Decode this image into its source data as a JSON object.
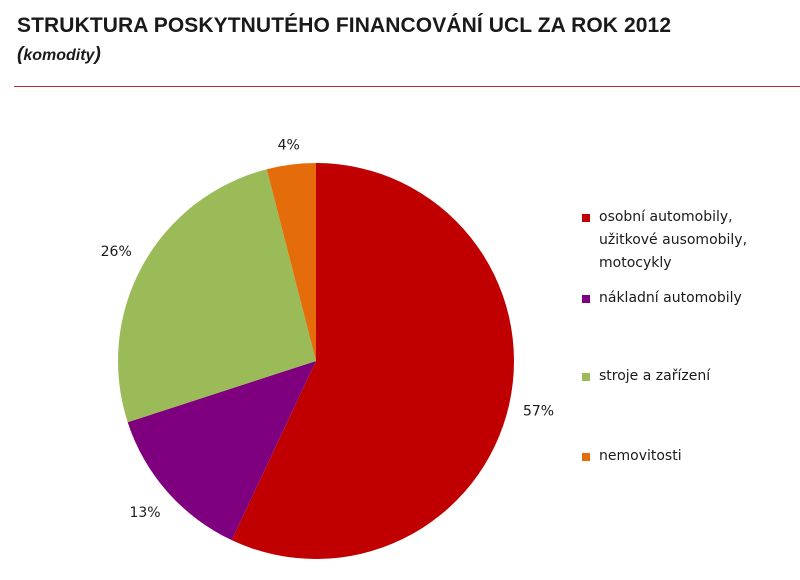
{
  "header": {
    "title": "STRUKTURA POSKYTNUTÉHO FINANCOVÁNÍ UCL ZA ROK 2012",
    "subtitle_open": "(",
    "subtitle_text": "komodity",
    "subtitle_close": ")"
  },
  "chart_data": {
    "type": "pie",
    "title": "STRUKTURA POSKYTNUTÉHO FINANCOVÁNÍ UCL ZA ROK 2012",
    "subtitle": "(komodity)",
    "categories": [
      "osobní automobily, užitkové ausomobily, motocykly",
      "nákladní automobily",
      "stroje a zařízení",
      "nemovitosti"
    ],
    "values": [
      57,
      13,
      26,
      4
    ],
    "labels": [
      "57%",
      "13%",
      "26%",
      "4%"
    ],
    "colors": [
      "#c00000",
      "#7f007f",
      "#9bbb59",
      "#e46c0a"
    ],
    "start": "12 o'clock, clockwise",
    "legend": "right"
  },
  "legend": {
    "items": [
      {
        "line1": "osobní automobily,",
        "line2": "užitkové ausomobily,",
        "line3": "motocykly"
      },
      {
        "line1": "nákladní automobily"
      },
      {
        "line1": "stroje a zařízení"
      },
      {
        "line1": "nemovitosti"
      }
    ]
  }
}
